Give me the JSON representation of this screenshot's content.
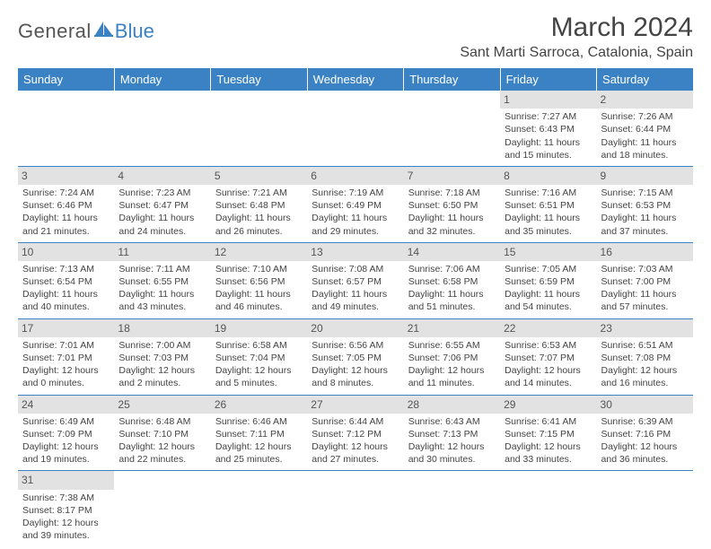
{
  "logo": {
    "text1": "General",
    "text2": "Blue"
  },
  "title": "March 2024",
  "location": "Sant Marti Sarroca, Catalonia, Spain",
  "colors": {
    "header_bg": "#3b82c4",
    "header_text": "#ffffff",
    "daynum_bg": "#e2e2e2",
    "border": "#3b82c4",
    "body_text": "#444444"
  },
  "day_headers": [
    "Sunday",
    "Monday",
    "Tuesday",
    "Wednesday",
    "Thursday",
    "Friday",
    "Saturday"
  ],
  "weeks": [
    [
      null,
      null,
      null,
      null,
      null,
      {
        "n": "1",
        "sunrise": "7:27 AM",
        "sunset": "6:43 PM",
        "dl": "11 hours and 15 minutes."
      },
      {
        "n": "2",
        "sunrise": "7:26 AM",
        "sunset": "6:44 PM",
        "dl": "11 hours and 18 minutes."
      }
    ],
    [
      {
        "n": "3",
        "sunrise": "7:24 AM",
        "sunset": "6:46 PM",
        "dl": "11 hours and 21 minutes."
      },
      {
        "n": "4",
        "sunrise": "7:23 AM",
        "sunset": "6:47 PM",
        "dl": "11 hours and 24 minutes."
      },
      {
        "n": "5",
        "sunrise": "7:21 AM",
        "sunset": "6:48 PM",
        "dl": "11 hours and 26 minutes."
      },
      {
        "n": "6",
        "sunrise": "7:19 AM",
        "sunset": "6:49 PM",
        "dl": "11 hours and 29 minutes."
      },
      {
        "n": "7",
        "sunrise": "7:18 AM",
        "sunset": "6:50 PM",
        "dl": "11 hours and 32 minutes."
      },
      {
        "n": "8",
        "sunrise": "7:16 AM",
        "sunset": "6:51 PM",
        "dl": "11 hours and 35 minutes."
      },
      {
        "n": "9",
        "sunrise": "7:15 AM",
        "sunset": "6:53 PM",
        "dl": "11 hours and 37 minutes."
      }
    ],
    [
      {
        "n": "10",
        "sunrise": "7:13 AM",
        "sunset": "6:54 PM",
        "dl": "11 hours and 40 minutes."
      },
      {
        "n": "11",
        "sunrise": "7:11 AM",
        "sunset": "6:55 PM",
        "dl": "11 hours and 43 minutes."
      },
      {
        "n": "12",
        "sunrise": "7:10 AM",
        "sunset": "6:56 PM",
        "dl": "11 hours and 46 minutes."
      },
      {
        "n": "13",
        "sunrise": "7:08 AM",
        "sunset": "6:57 PM",
        "dl": "11 hours and 49 minutes."
      },
      {
        "n": "14",
        "sunrise": "7:06 AM",
        "sunset": "6:58 PM",
        "dl": "11 hours and 51 minutes."
      },
      {
        "n": "15",
        "sunrise": "7:05 AM",
        "sunset": "6:59 PM",
        "dl": "11 hours and 54 minutes."
      },
      {
        "n": "16",
        "sunrise": "7:03 AM",
        "sunset": "7:00 PM",
        "dl": "11 hours and 57 minutes."
      }
    ],
    [
      {
        "n": "17",
        "sunrise": "7:01 AM",
        "sunset": "7:01 PM",
        "dl": "12 hours and 0 minutes."
      },
      {
        "n": "18",
        "sunrise": "7:00 AM",
        "sunset": "7:03 PM",
        "dl": "12 hours and 2 minutes."
      },
      {
        "n": "19",
        "sunrise": "6:58 AM",
        "sunset": "7:04 PM",
        "dl": "12 hours and 5 minutes."
      },
      {
        "n": "20",
        "sunrise": "6:56 AM",
        "sunset": "7:05 PM",
        "dl": "12 hours and 8 minutes."
      },
      {
        "n": "21",
        "sunrise": "6:55 AM",
        "sunset": "7:06 PM",
        "dl": "12 hours and 11 minutes."
      },
      {
        "n": "22",
        "sunrise": "6:53 AM",
        "sunset": "7:07 PM",
        "dl": "12 hours and 14 minutes."
      },
      {
        "n": "23",
        "sunrise": "6:51 AM",
        "sunset": "7:08 PM",
        "dl": "12 hours and 16 minutes."
      }
    ],
    [
      {
        "n": "24",
        "sunrise": "6:49 AM",
        "sunset": "7:09 PM",
        "dl": "12 hours and 19 minutes."
      },
      {
        "n": "25",
        "sunrise": "6:48 AM",
        "sunset": "7:10 PM",
        "dl": "12 hours and 22 minutes."
      },
      {
        "n": "26",
        "sunrise": "6:46 AM",
        "sunset": "7:11 PM",
        "dl": "12 hours and 25 minutes."
      },
      {
        "n": "27",
        "sunrise": "6:44 AM",
        "sunset": "7:12 PM",
        "dl": "12 hours and 27 minutes."
      },
      {
        "n": "28",
        "sunrise": "6:43 AM",
        "sunset": "7:13 PM",
        "dl": "12 hours and 30 minutes."
      },
      {
        "n": "29",
        "sunrise": "6:41 AM",
        "sunset": "7:15 PM",
        "dl": "12 hours and 33 minutes."
      },
      {
        "n": "30",
        "sunrise": "6:39 AM",
        "sunset": "7:16 PM",
        "dl": "12 hours and 36 minutes."
      }
    ],
    [
      {
        "n": "31",
        "sunrise": "7:38 AM",
        "sunset": "8:17 PM",
        "dl": "12 hours and 39 minutes."
      },
      null,
      null,
      null,
      null,
      null,
      null
    ]
  ],
  "labels": {
    "sunrise": "Sunrise:",
    "sunset": "Sunset:",
    "daylight": "Daylight:"
  }
}
